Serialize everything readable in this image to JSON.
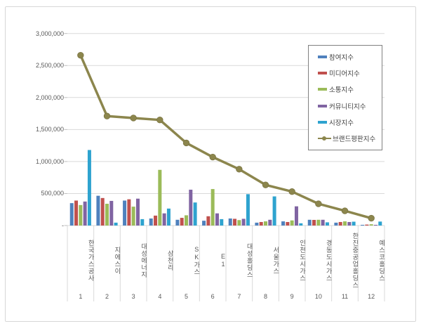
{
  "chart_data": {
    "type": "bar",
    "subtype": "grouped-bars-with-line-overlay",
    "title": "",
    "xlabel": "",
    "ylabel": "",
    "categories": [
      "한국가스공사",
      "지에스이",
      "대성에너지",
      "삼천리",
      "SK가스",
      "E1",
      "대성홀딩스",
      "서울가스",
      "인천도시가스",
      "경동도시가스",
      "한진중공업홀딩스",
      "예스코홀딩스"
    ],
    "category_numbers": [
      "1",
      "2",
      "3",
      "4",
      "5",
      "6",
      "7",
      "8",
      "9",
      "10",
      "11",
      "12"
    ],
    "series": [
      {
        "name": "참여지수",
        "type": "bar",
        "color": "#4F81BD",
        "values": [
          350000,
          465000,
          390000,
          110000,
          90000,
          75000,
          110000,
          45000,
          65000,
          90000,
          45000,
          10000
        ]
      },
      {
        "name": "미디어지수",
        "type": "bar",
        "color": "#C0504D",
        "values": [
          390000,
          430000,
          410000,
          155000,
          120000,
          145000,
          105000,
          55000,
          55000,
          88000,
          55000,
          15000
        ]
      },
      {
        "name": "소통지수",
        "type": "bar",
        "color": "#9BBB59",
        "values": [
          320000,
          340000,
          295000,
          870000,
          160000,
          570000,
          85000,
          65000,
          80000,
          90000,
          65000,
          20000
        ]
      },
      {
        "name": "커뮤니티지수",
        "type": "bar",
        "color": "#8064A2",
        "values": [
          375000,
          385000,
          420000,
          190000,
          560000,
          190000,
          105000,
          90000,
          300000,
          90000,
          55000,
          8000
        ]
      },
      {
        "name": "시장지수",
        "type": "bar",
        "color": "#2EA3CF",
        "values": [
          1180000,
          45000,
          100000,
          265000,
          360000,
          100000,
          490000,
          455000,
          35000,
          50000,
          60000,
          62000
        ]
      },
      {
        "name": "브랜드평판지수",
        "type": "line",
        "color": "#8C864D",
        "values": [
          2660000,
          1710000,
          1680000,
          1650000,
          1290000,
          1070000,
          880000,
          635000,
          530000,
          340000,
          230000,
          115000
        ]
      }
    ],
    "ylim": [
      0,
      3000000
    ],
    "y_tick_interval": 500000,
    "y_tick_labels": [
      "-",
      "500,000",
      "1,000,000",
      "1,500,000",
      "2,000,000",
      "2,500,000",
      "3,000,000"
    ],
    "grid": true,
    "legend_position": "upper-right-inside"
  },
  "colors": {
    "background": "#ffffff",
    "frame_border": "#d7d7d7",
    "gridline": "#d9d9d9",
    "tick": "#bfbfbf",
    "axis_text": "#595959",
    "legend_border": "#808080",
    "legend_text": "#404040"
  }
}
